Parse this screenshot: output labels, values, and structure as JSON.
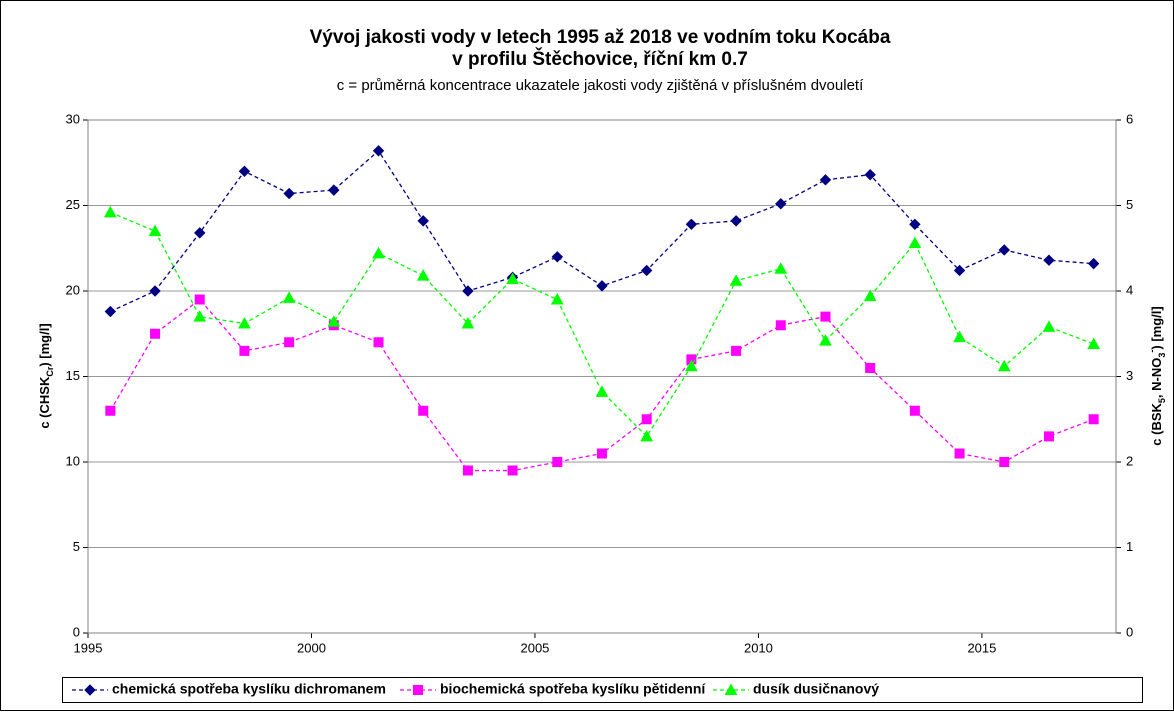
{
  "chart_data": {
    "type": "line",
    "title": [
      "Vývoj jakosti vody v letech 1995 až 2018 ve vodním toku Kocába",
      "v profilu Štěchovice, říční km 0.7"
    ],
    "subtitle": "c = průměrná koncentrace ukazatele jakosti vody zjištěná v příslušném dvouletí",
    "ylabel": [
      "c (CHSK",
      "Cr",
      ") [mg/l]"
    ],
    "y2label": [
      "c (BSK",
      "5",
      ", N-NO",
      "3",
      "-",
      ") [mg/l]"
    ],
    "x": [
      1995.5,
      1996.5,
      1997.5,
      1998.5,
      1999.5,
      2000.5,
      2001.5,
      2002.5,
      2003.5,
      2004.5,
      2005.5,
      2006.5,
      2007.5,
      2008.5,
      2009.5,
      2010.5,
      2011.5,
      2012.5,
      2013.5,
      2014.5,
      2015.5,
      2016.5,
      2017.5
    ],
    "xlim": [
      1995,
      2018
    ],
    "xticks": [
      1995,
      2000,
      2005,
      2010,
      2015
    ],
    "ylim": [
      0,
      30
    ],
    "yticks": [
      0,
      5,
      10,
      15,
      20,
      25,
      30
    ],
    "y2lim": [
      0,
      6
    ],
    "y2ticks": [
      0,
      1,
      2,
      3,
      4,
      5,
      6
    ],
    "grid": true,
    "series": [
      {
        "name": "chemická spotřeba kyslíku dichromanem",
        "color": "#000080",
        "marker": "diamond",
        "values": [
          18.8,
          20.0,
          23.4,
          27.0,
          25.7,
          25.9,
          28.2,
          24.1,
          20.0,
          20.8,
          22.0,
          20.3,
          21.2,
          23.9,
          24.1,
          25.1,
          26.5,
          26.8,
          23.9,
          21.2,
          22.4,
          21.8,
          21.6
        ]
      },
      {
        "name": "biochemická spotřeba kyslíku pětidenní",
        "color": "#ff00ff",
        "marker": "square",
        "axis": "y2",
        "values": [
          2.6,
          3.5,
          3.9,
          3.3,
          3.4,
          3.6,
          3.4,
          2.6,
          1.9,
          1.9,
          2.0,
          2.1,
          2.5,
          3.2,
          3.3,
          3.6,
          3.7,
          3.1,
          2.6,
          2.1,
          2.0,
          2.3,
          2.5
        ]
      },
      {
        "name": "dusík dusičnanový",
        "color": "#00ff00",
        "marker": "triangle",
        "axis": "y2",
        "values": [
          4.92,
          4.7,
          3.7,
          3.62,
          3.92,
          3.64,
          4.44,
          4.18,
          3.62,
          4.14,
          3.9,
          2.82,
          2.3,
          3.12,
          4.12,
          4.26,
          3.42,
          3.94,
          4.56,
          3.46,
          3.12,
          3.58,
          3.38
        ]
      }
    ]
  }
}
